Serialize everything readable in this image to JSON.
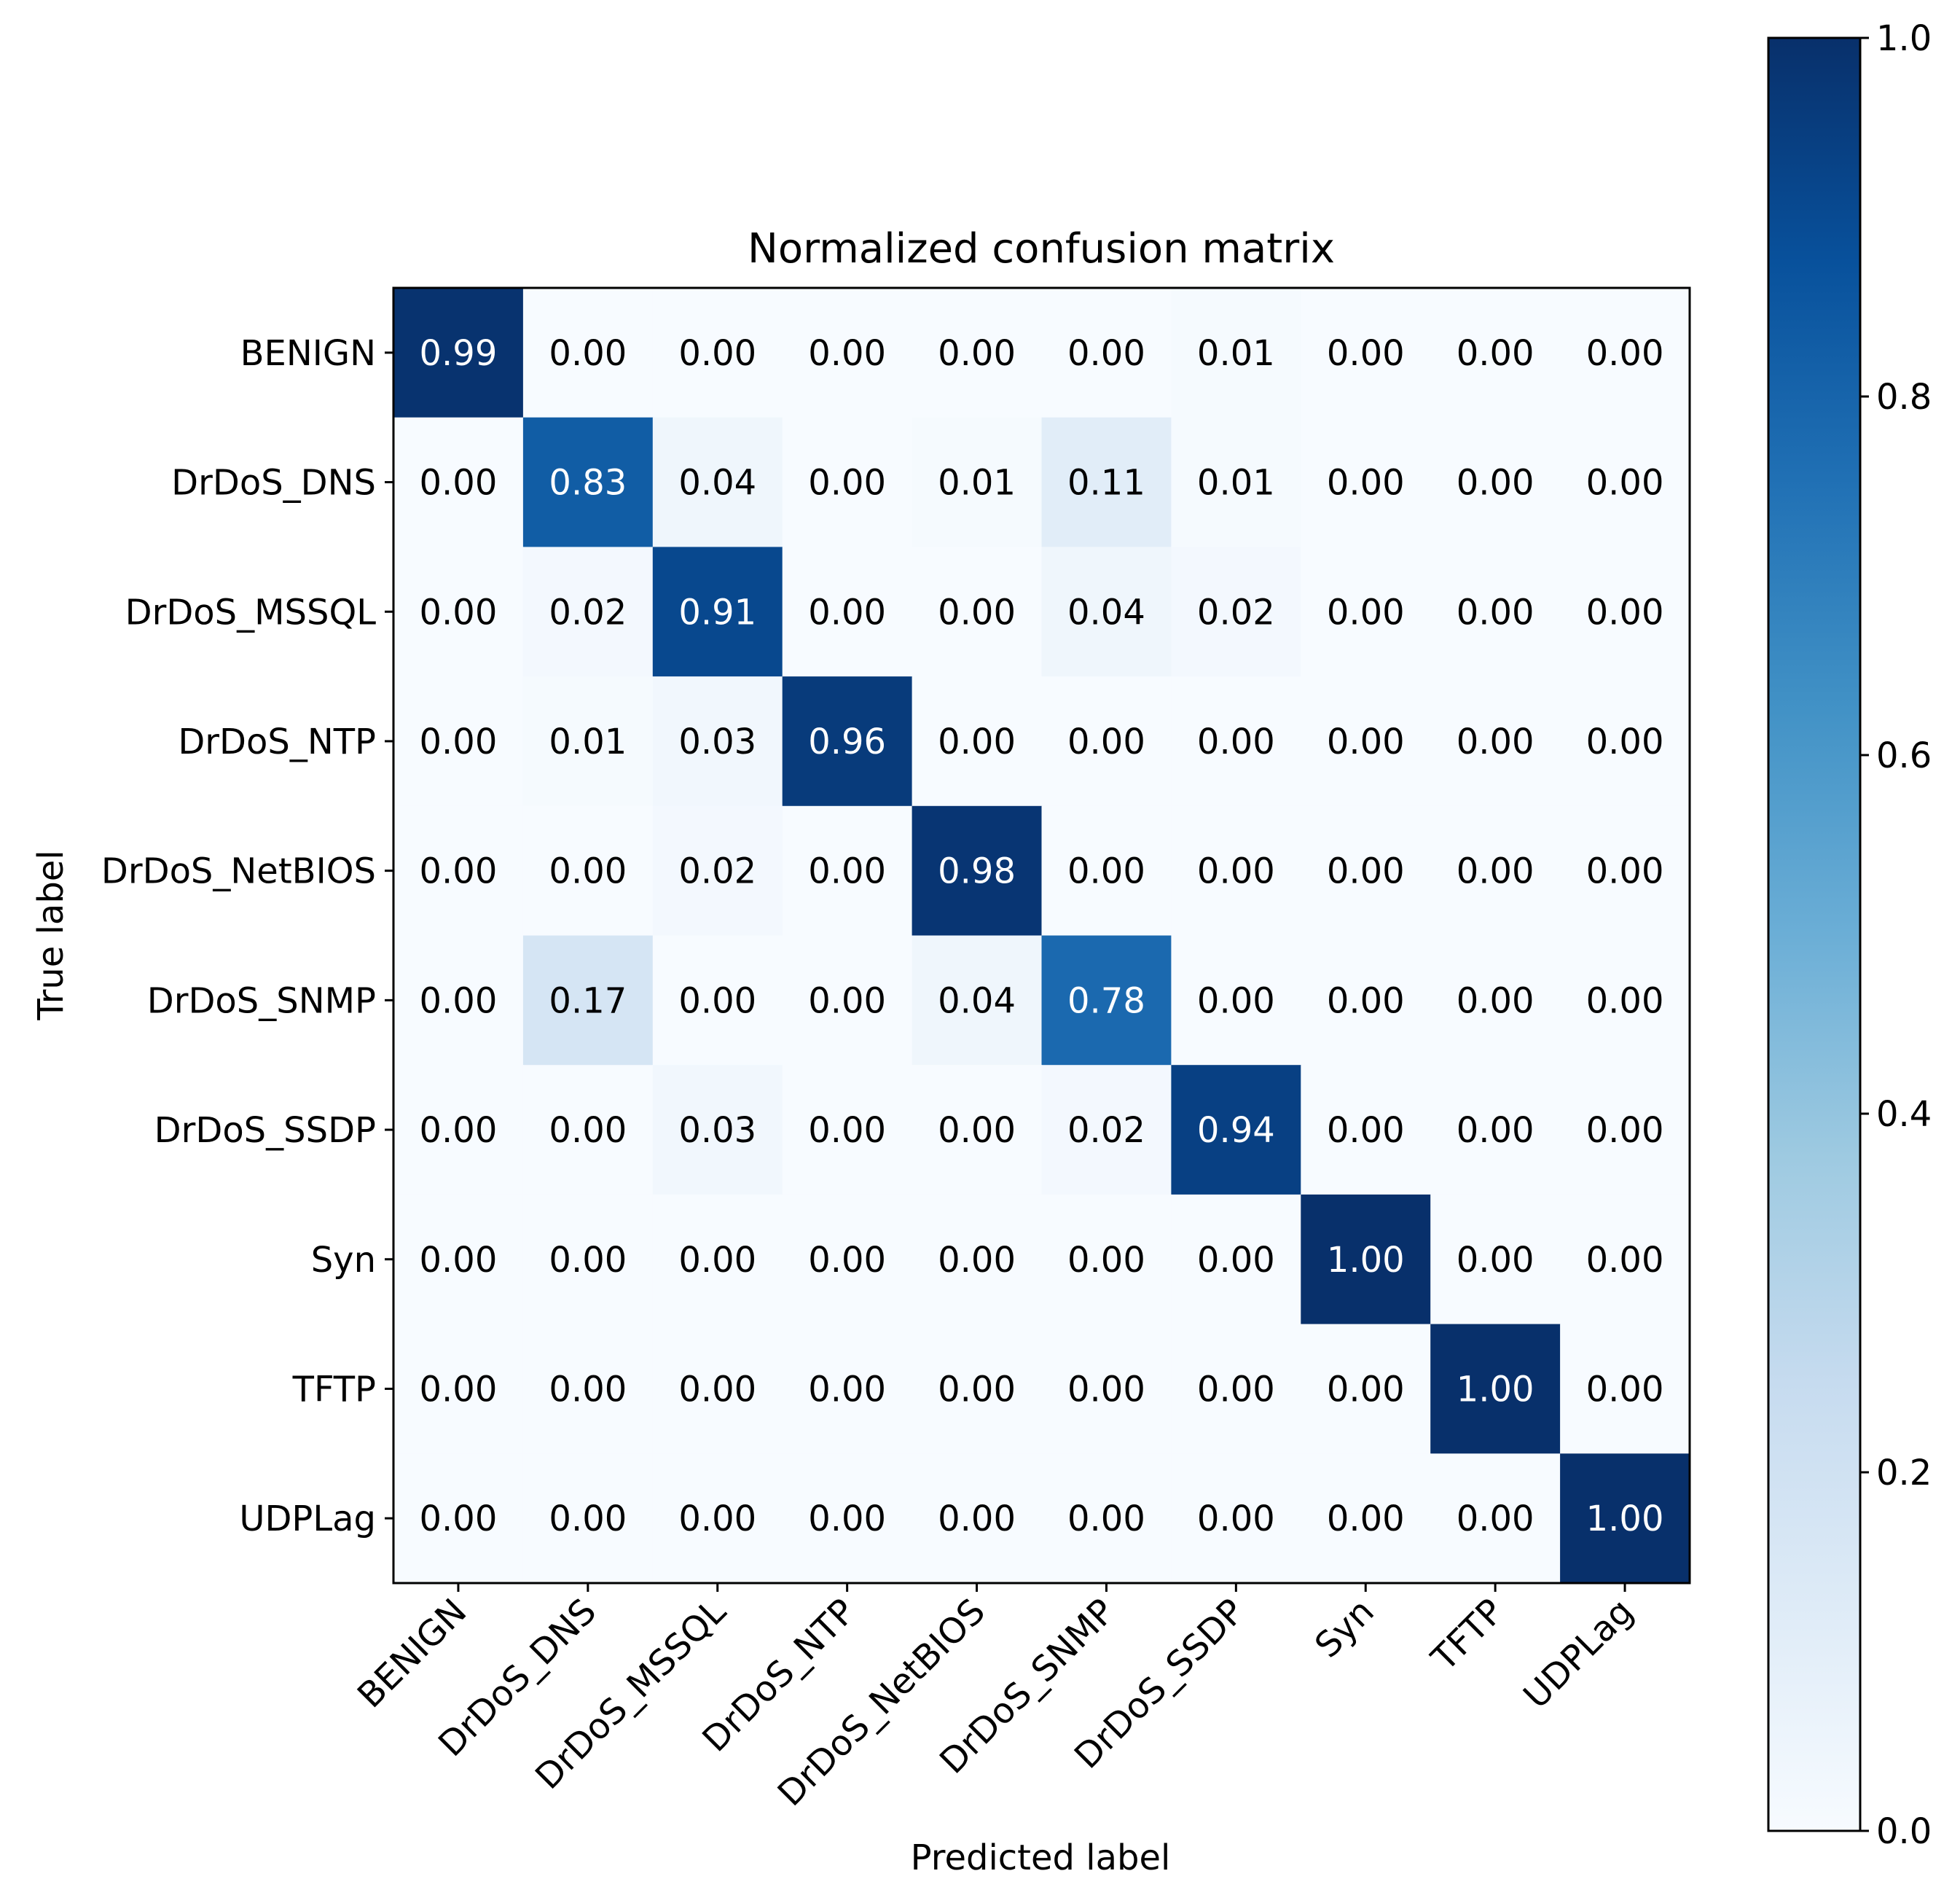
{
  "chart_data": {
    "type": "heatmap",
    "title": "Normalized confusion matrix",
    "xlabel": "Predicted label",
    "ylabel": "True label",
    "x_categories": [
      "BENIGN",
      "DrDoS_DNS",
      "DrDoS_MSSQL",
      "DrDoS_NTP",
      "DrDoS_NetBIOS",
      "DrDoS_SNMP",
      "DrDoS_SSDP",
      "Syn",
      "TFTP",
      "UDPLag"
    ],
    "y_categories": [
      "BENIGN",
      "DrDoS_DNS",
      "DrDoS_MSSQL",
      "DrDoS_NTP",
      "DrDoS_NetBIOS",
      "DrDoS_SNMP",
      "DrDoS_SSDP",
      "Syn",
      "TFTP",
      "UDPLag"
    ],
    "values": [
      [
        0.99,
        0.0,
        0.0,
        0.0,
        0.0,
        0.0,
        0.01,
        0.0,
        0.0,
        0.0
      ],
      [
        0.0,
        0.83,
        0.04,
        0.0,
        0.01,
        0.11,
        0.01,
        0.0,
        0.0,
        0.0
      ],
      [
        0.0,
        0.02,
        0.91,
        0.0,
        0.0,
        0.04,
        0.02,
        0.0,
        0.0,
        0.0
      ],
      [
        0.0,
        0.01,
        0.03,
        0.96,
        0.0,
        0.0,
        0.0,
        0.0,
        0.0,
        0.0
      ],
      [
        0.0,
        0.0,
        0.02,
        0.0,
        0.98,
        0.0,
        0.0,
        0.0,
        0.0,
        0.0
      ],
      [
        0.0,
        0.17,
        0.0,
        0.0,
        0.04,
        0.78,
        0.0,
        0.0,
        0.0,
        0.0
      ],
      [
        0.0,
        0.0,
        0.03,
        0.0,
        0.0,
        0.02,
        0.94,
        0.0,
        0.0,
        0.0
      ],
      [
        0.0,
        0.0,
        0.0,
        0.0,
        0.0,
        0.0,
        0.0,
        1.0,
        0.0,
        0.0
      ],
      [
        0.0,
        0.0,
        0.0,
        0.0,
        0.0,
        0.0,
        0.0,
        0.0,
        1.0,
        0.0
      ],
      [
        0.0,
        0.0,
        0.0,
        0.0,
        0.0,
        0.0,
        0.0,
        0.0,
        0.0,
        1.0
      ]
    ],
    "value_format": "0.00",
    "colormap": "Blues",
    "colormap_stops": [
      "#f7fbff",
      "#deebf7",
      "#c6dbef",
      "#9ecae1",
      "#6baed6",
      "#4292c6",
      "#2171b5",
      "#08519c",
      "#08306b"
    ],
    "colorbar": {
      "range": [
        0.0,
        1.0
      ],
      "ticks": [
        0.0,
        0.2,
        0.4,
        0.6,
        0.8,
        1.0
      ],
      "tick_labels": [
        "0.0",
        "0.2",
        "0.4",
        "0.6",
        "0.8",
        "1.0"
      ]
    },
    "text_color_light": "#ffffff",
    "text_color_dark": "#000000",
    "grid": false
  }
}
